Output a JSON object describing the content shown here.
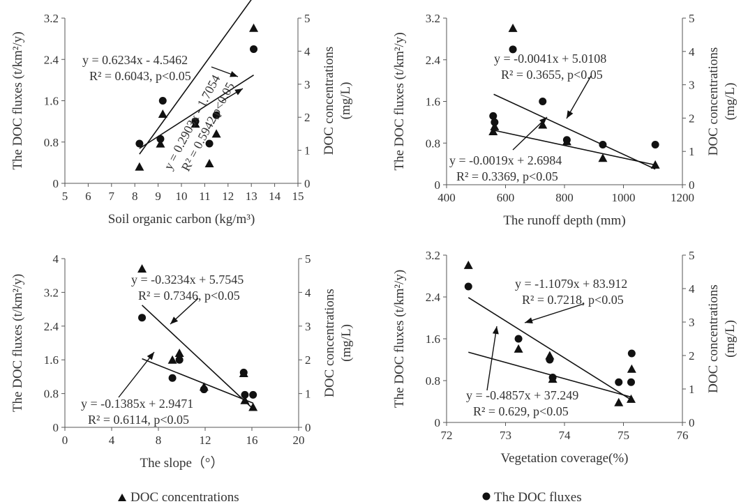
{
  "chart_data": [
    {
      "type": "scatter",
      "xlabel": "Soil organic carbon (kg/m³)",
      "ylabel_left": "The DOC fluxes (t/km²/y)",
      "ylabel_right": "DOC concentrations (mg/L)",
      "xlim": [
        5,
        15
      ],
      "xticks": [
        5,
        6,
        7,
        8,
        9,
        10,
        11,
        12,
        13,
        14,
        15
      ],
      "ylim_left": [
        0,
        3.2
      ],
      "yticks_left": [
        "0",
        "0.8",
        "1.6",
        "2.4",
        "3.2"
      ],
      "ylim_right": [
        0,
        5
      ],
      "yticks_right": [
        "0",
        "1",
        "2",
        "3",
        "4",
        "5"
      ],
      "series": [
        {
          "name": "The DOC fluxes",
          "marker": "circle",
          "axis": "left",
          "x": [
            8.2,
            9.1,
            9.2,
            10.6,
            11.2,
            11.5,
            13.1
          ],
          "y": [
            0.77,
            0.86,
            1.6,
            1.2,
            0.77,
            1.32,
            2.6
          ]
        },
        {
          "name": "DOC concentrations",
          "marker": "triangle",
          "axis": "right",
          "x": [
            8.2,
            9.1,
            9.2,
            10.6,
            11.2,
            11.5,
            13.1
          ],
          "y": [
            0.5,
            1.2,
            2.1,
            1.8,
            0.6,
            1.5,
            4.7
          ]
        }
      ],
      "trendlines": [
        {
          "axis": "left",
          "slope": 0.6234,
          "intercept": -4.5462,
          "x_range": [
            8.2,
            13.1
          ]
        },
        {
          "axis": "left",
          "slope": 0.2903,
          "intercept": -1.7054,
          "x_range": [
            8.2,
            13.1
          ]
        }
      ],
      "annotations": [
        {
          "line1": "y = 0.6234x - 4.5462",
          "line2": "R² = 0.6043, p<0.05"
        },
        {
          "line1": "y = 0.2903x - 1.7054",
          "line2": "R² = 0.5942,p<0.05"
        }
      ]
    },
    {
      "type": "scatter",
      "xlabel": "The runoff depth (mm)",
      "ylabel_left": "The DOC fluxes (t/km²/y)",
      "ylabel_right": "DOC concentrations (mg/L)",
      "xlim": [
        400,
        1200
      ],
      "xticks": [
        400,
        600,
        800,
        1000,
        1200
      ],
      "ylim_left": [
        0,
        3.2
      ],
      "yticks_left": [
        "0",
        "0.8",
        "1.6",
        "2.4",
        "3.2"
      ],
      "ylim_right": [
        0,
        5
      ],
      "yticks_right": [
        "0",
        "1",
        "2",
        "3",
        "4",
        "5"
      ],
      "series": [
        {
          "name": "The DOC fluxes",
          "marker": "circle",
          "axis": "left",
          "x": [
            558,
            563,
            625,
            726,
            808,
            930,
            1108
          ],
          "y": [
            1.32,
            1.2,
            2.6,
            1.6,
            0.86,
            0.77,
            0.77
          ]
        },
        {
          "name": "DOC concentrations",
          "marker": "triangle",
          "axis": "right",
          "x": [
            558,
            563,
            625,
            726,
            808,
            930,
            1108
          ],
          "y": [
            1.6,
            1.75,
            4.7,
            1.8,
            1.3,
            0.8,
            0.6
          ]
        }
      ],
      "trendlines": [
        {
          "axis": "right",
          "slope": -0.0041,
          "intercept": 5.0108,
          "x_range": [
            560,
            1108
          ]
        },
        {
          "axis": "right",
          "slope": -0.0019,
          "intercept": 2.6984,
          "x_range": [
            560,
            1108
          ]
        }
      ],
      "annotations": [
        {
          "line1": "y = -0.0041x + 5.0108",
          "line2": "R² = 0.3655, p<0.05"
        },
        {
          "line1": "y = -0.0019x + 2.6984",
          "line2": "R² = 0.3369, p<0.05"
        }
      ]
    },
    {
      "type": "scatter",
      "xlabel": "The slope（°）",
      "ylabel_left": "The DOC fluxes (t/km²/y)",
      "ylabel_right": "DOC concentrations (mg/L)",
      "xlim": [
        0,
        20
      ],
      "xticks": [
        0,
        4,
        8,
        12,
        16,
        20
      ],
      "ylim_left": [
        0,
        4
      ],
      "yticks_left": [
        "0",
        "0.8",
        "1.6",
        "2.4",
        "3.2",
        "4"
      ],
      "ylim_right": [
        0,
        5
      ],
      "yticks_right": [
        "0",
        "1",
        "2",
        "3",
        "4",
        "5"
      ],
      "series": [
        {
          "name": "The DOC fluxes",
          "marker": "circle",
          "axis": "left",
          "x": [
            6.6,
            9.2,
            9.8,
            11.9,
            15.3,
            15.4,
            16.1
          ],
          "y": [
            2.6,
            1.17,
            1.6,
            0.9,
            1.3,
            0.77,
            0.77
          ]
        },
        {
          "name": "DOC concentrations",
          "marker": "triangle",
          "axis": "right",
          "x": [
            6.6,
            9.2,
            9.8,
            11.9,
            15.3,
            15.4,
            16.1
          ],
          "y": [
            4.7,
            2.0,
            2.2,
            1.2,
            1.6,
            0.8,
            0.6
          ]
        }
      ],
      "trendlines": [
        {
          "axis": "right",
          "slope": -0.3234,
          "intercept": 5.7545,
          "x_range": [
            6.6,
            16.1
          ]
        },
        {
          "axis": "right",
          "slope": -0.1385,
          "intercept": 2.9471,
          "x_range": [
            6.6,
            16.1
          ]
        }
      ],
      "annotations": [
        {
          "line1": "y = -0.3234x + 5.7545",
          "line2": "R² = 0.7346, p<0.05"
        },
        {
          "line1": "y = -0.1385x + 2.9471",
          "line2": "R² = 0.6114, p<0.05"
        }
      ]
    },
    {
      "type": "scatter",
      "xlabel": "Vegetation coverage(%)",
      "ylabel_left": "The DOC fluxes (t/km²/y)",
      "ylabel_right": "DOC concentrations (mg/L)",
      "xlim": [
        72,
        76
      ],
      "xticks": [
        72,
        73,
        74,
        75,
        76
      ],
      "ylim_left": [
        0,
        3.2
      ],
      "yticks_left": [
        "0",
        "0.8",
        "1.6",
        "2.4",
        "3.2"
      ],
      "ylim_right": [
        0,
        5
      ],
      "yticks_right": [
        "0",
        "1",
        "2",
        "3",
        "4",
        "5"
      ],
      "series": [
        {
          "name": "The DOC fluxes",
          "marker": "circle",
          "axis": "left",
          "x": [
            72.37,
            73.22,
            73.75,
            73.8,
            74.92,
            75.13,
            75.14
          ],
          "y": [
            2.6,
            1.6,
            1.2,
            0.86,
            0.77,
            0.77,
            1.32
          ]
        },
        {
          "name": "DOC concentrations",
          "marker": "triangle",
          "axis": "right",
          "x": [
            72.37,
            73.22,
            73.75,
            73.8,
            74.92,
            75.13,
            75.14
          ],
          "y": [
            4.7,
            2.2,
            2.0,
            1.3,
            0.6,
            0.7,
            1.6
          ]
        }
      ],
      "trendlines": [
        {
          "axis": "right",
          "slope": -1.1079,
          "intercept": 83.912,
          "x_range": [
            72.37,
            75.14
          ]
        },
        {
          "axis": "right",
          "slope": -0.4857,
          "intercept": 37.249,
          "x_range": [
            72.37,
            75.14
          ]
        }
      ],
      "annotations": [
        {
          "line1": "y = -1.1079x + 83.912",
          "line2": "R² = 0.7218, p<0.05"
        },
        {
          "line1": "y = -0.4857x + 37.249",
          "line2": "R² = 0.629, p<0.05"
        }
      ]
    }
  ],
  "legend": {
    "triangle_label": "DOC concentrations",
    "circle_label": "The DOC fluxes"
  }
}
